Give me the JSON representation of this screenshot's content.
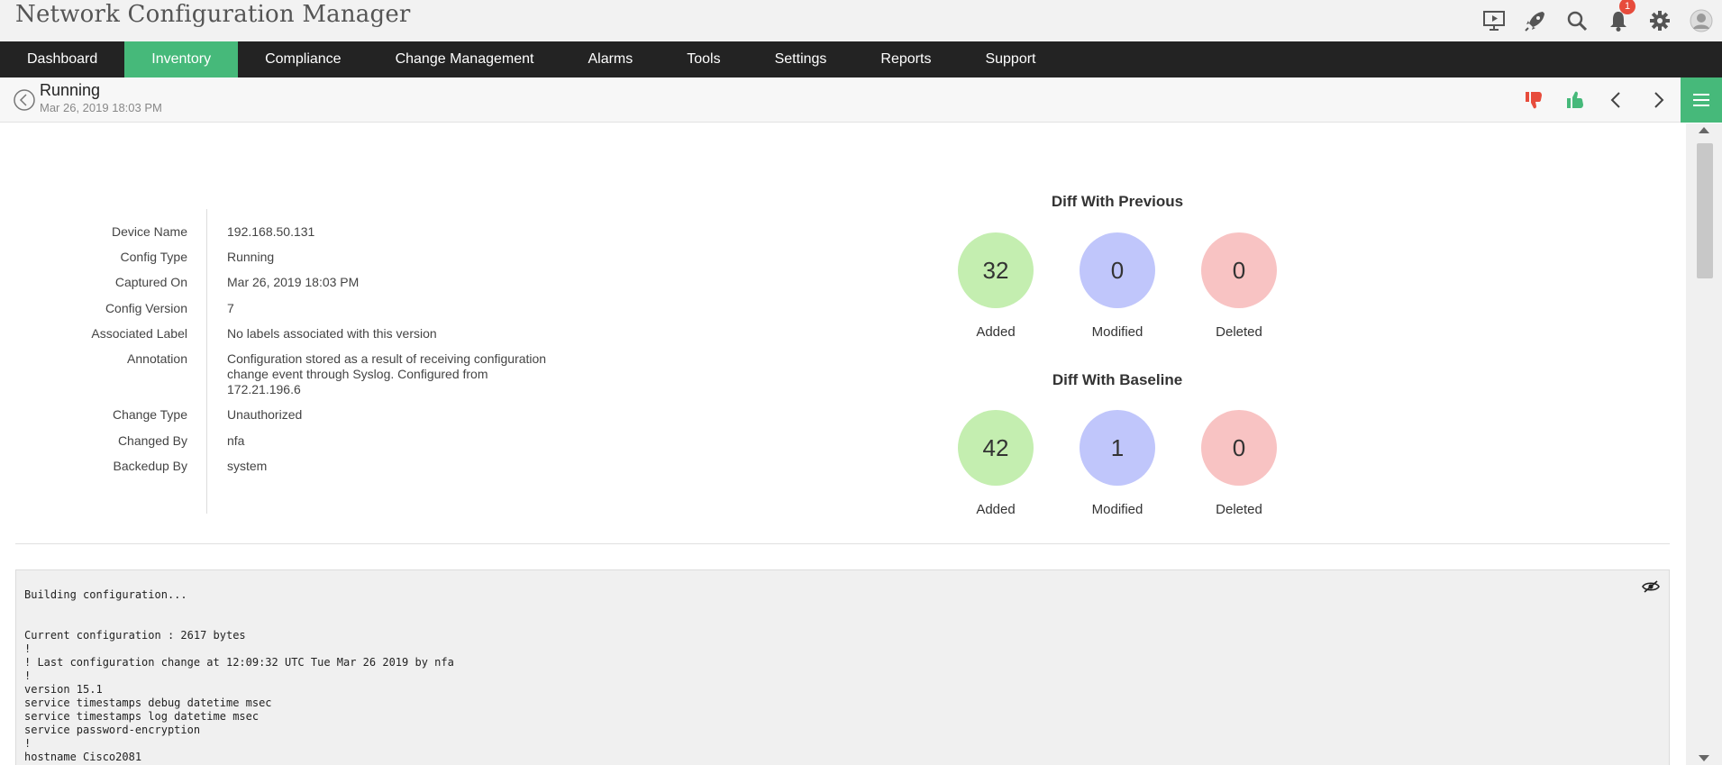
{
  "app": {
    "title": "Network Configuration Manager",
    "notification_count": "1"
  },
  "header_icons": [
    "presentation-icon",
    "rocket-icon",
    "search-icon",
    "bell-icon",
    "gear-icon",
    "user-avatar-icon"
  ],
  "nav": {
    "active": "Inventory",
    "items": [
      "Dashboard",
      "Inventory",
      "Compliance",
      "Change Management",
      "Alarms",
      "Tools",
      "Settings",
      "Reports",
      "Support"
    ]
  },
  "subheader": {
    "title": "Running",
    "date": "Mar 26, 2019 18:03 PM"
  },
  "details": [
    {
      "label": "Device Name",
      "value": "192.168.50.131"
    },
    {
      "label": "Config Type",
      "value": "Running"
    },
    {
      "label": "Captured On",
      "value": "Mar 26, 2019 18:03 PM"
    },
    {
      "label": "Config Version",
      "value": "7"
    },
    {
      "label": "Associated Label",
      "value": "No labels associated with this version"
    },
    {
      "label": "Annotation",
      "value": "Configuration stored as a result of receiving configuration change event through Syslog. Configured from 172.21.196.6"
    },
    {
      "label": "Change Type",
      "value": "Unauthorized"
    },
    {
      "label": "Changed By",
      "value": "nfa"
    },
    {
      "label": "Backedup By",
      "value": "system"
    }
  ],
  "diff_previous": {
    "title": "Diff With Previous",
    "added": {
      "value": "32",
      "label": "Added"
    },
    "modified": {
      "value": "0",
      "label": "Modified"
    },
    "deleted": {
      "value": "0",
      "label": "Deleted"
    }
  },
  "diff_baseline": {
    "title": "Diff With Baseline",
    "added": {
      "value": "42",
      "label": "Added"
    },
    "modified": {
      "value": "1",
      "label": "Modified"
    },
    "deleted": {
      "value": "0",
      "label": "Deleted"
    }
  },
  "colors": {
    "accent": "#46b97a",
    "added": "#c4eeb0",
    "modified": "#c0c6fb",
    "deleted": "#f8c3c3",
    "thumbs_down": "#e74c3c",
    "thumbs_up": "#46b97a"
  },
  "config_text": "Building configuration...\n\n\nCurrent configuration : 2617 bytes\n!\n! Last configuration change at 12:09:32 UTC Tue Mar 26 2019 by nfa\n!\nversion 15.1\nservice timestamps debug datetime msec\nservice timestamps log datetime msec\nservice password-encryption\n!\nhostname Cisco2081"
}
